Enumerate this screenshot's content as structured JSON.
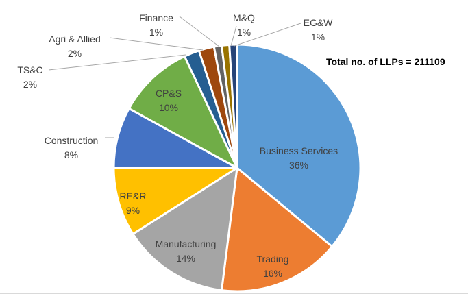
{
  "chart_data": {
    "type": "pie",
    "annotation": "Total no. of LLPs = 211109",
    "slices": [
      {
        "label": "Business Services",
        "value": 36,
        "pct": "36%",
        "color": "#5b9bd5"
      },
      {
        "label": "Trading",
        "value": 16,
        "pct": "16%",
        "color": "#ed7d31"
      },
      {
        "label": "Manufacturing",
        "value": 14,
        "pct": "14%",
        "color": "#a5a5a5"
      },
      {
        "label": "RE&R",
        "value": 9,
        "pct": "9%",
        "color": "#ffc000"
      },
      {
        "label": "Construction",
        "value": 8,
        "pct": "8%",
        "color": "#4472c4"
      },
      {
        "label": "CP&S",
        "value": 10,
        "pct": "10%",
        "color": "#70ad47"
      },
      {
        "label": "TS&C",
        "value": 2,
        "pct": "2%",
        "color": "#255e91"
      },
      {
        "label": "Agri & Allied",
        "value": 2,
        "pct": "2%",
        "color": "#9e480e"
      },
      {
        "label": "Finance",
        "value": 1,
        "pct": "1%",
        "color": "#636363"
      },
      {
        "label": "M&Q",
        "value": 1,
        "pct": "1%",
        "color": "#997300"
      },
      {
        "label": "EG&W",
        "value": 1,
        "pct": "1%",
        "color": "#264478"
      }
    ]
  }
}
